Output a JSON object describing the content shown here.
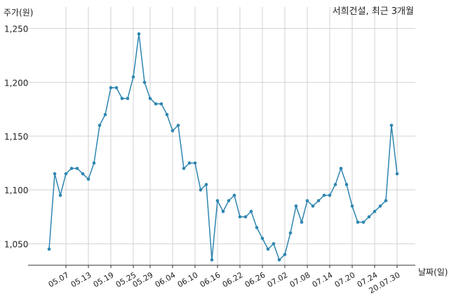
{
  "chart_data": {
    "type": "line",
    "title": "서희건설, 최근 3개월",
    "ylabel": "주가(원)",
    "xlabel": "날짜(일)",
    "ylim": [
      1030,
      1255
    ],
    "y_ticks": [
      1050,
      1100,
      1150,
      1200,
      1250
    ],
    "y_tick_labels": [
      "1,050",
      "1,100",
      "1,150",
      "1,200",
      "1,250"
    ],
    "x_tick_labels": [
      "05.07",
      "05.13",
      "05.19",
      "05.25",
      "05.29",
      "06.04",
      "06.10",
      "06.16",
      "06.22",
      "06.26",
      "07.02",
      "07.08",
      "07.14",
      "07.20",
      "07.24",
      "20.07.30"
    ],
    "x_tick_index": [
      3,
      7,
      11,
      15,
      18,
      22,
      26,
      30,
      34,
      38,
      42,
      46,
      50,
      54,
      58,
      62
    ],
    "grid": true,
    "series": [
      {
        "color": "#2e86b0",
        "values": [
          1045,
          1115,
          1095,
          1115,
          1120,
          1120,
          1115,
          1110,
          1125,
          1160,
          1170,
          1195,
          1195,
          1185,
          1185,
          1205,
          1245,
          1200,
          1185,
          1180,
          1180,
          1170,
          1155,
          1160,
          1120,
          1125,
          1125,
          1100,
          1105,
          1035,
          1090,
          1080,
          1090,
          1095,
          1075,
          1075,
          1080,
          1065,
          1055,
          1045,
          1050,
          1035,
          1040,
          1060,
          1085,
          1070,
          1090,
          1085,
          1090,
          1095,
          1095,
          1105,
          1120,
          1105,
          1085,
          1070,
          1070,
          1075,
          1080,
          1085,
          1090,
          1160,
          1115
        ]
      }
    ]
  }
}
